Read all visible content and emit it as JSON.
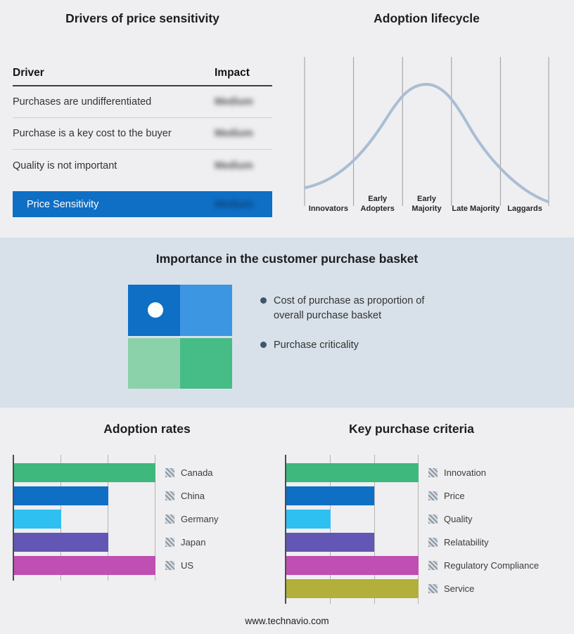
{
  "footer": {
    "text": "www.technavio.com"
  },
  "colors": {
    "page_background": "#efeff1",
    "band_background": "#d8e1ea",
    "accent_blue": "#0e6fc5",
    "curve_stroke": "#aabdd3",
    "bullet_dot": "#3f566b"
  },
  "drivers_panel": {
    "title": "Drivers of price sensitivity",
    "columns": {
      "driver": "Driver",
      "impact": "Impact"
    },
    "impact_values_blurred": true,
    "rows": [
      {
        "driver": "Purchases are undifferentiated",
        "impact": "Medium"
      },
      {
        "driver": "Purchase is a key cost to the buyer",
        "impact": "Medium"
      },
      {
        "driver": "Quality is not important",
        "impact": "Medium"
      }
    ],
    "summary": {
      "label": "Price Sensitivity",
      "impact": "Medium"
    }
  },
  "purchase_basket": {
    "title": "Importance in the customer purchase basket",
    "bullets": [
      "Cost of purchase as proportion of overall purchase basket",
      "Purchase criticality"
    ],
    "quadrant": {
      "top_left": "#0e6fc5",
      "top_right": "#3d96e1",
      "bottom_left": "#8bd1a9",
      "bottom_right": "#46bd86"
    }
  },
  "chart_data": [
    {
      "id": "adoption_lifecycle",
      "type": "line",
      "shape": "bell_curve",
      "title": "Adoption lifecycle",
      "categories": [
        "Innovators",
        "Early Adopters",
        "Early Majority",
        "Late Majority",
        "Laggards"
      ],
      "grid": true,
      "legend_position": "none"
    },
    {
      "id": "adoption_rates",
      "type": "bar",
      "orientation": "horizontal",
      "title": "Adoption rates",
      "xlim": [
        0,
        3
      ],
      "xmax": 3,
      "grid": true,
      "legend_position": "right",
      "series": [
        {
          "label": "Canada",
          "value": 3,
          "color": "#3eb87d"
        },
        {
          "label": "China",
          "value": 2,
          "color": "#0e6fc5"
        },
        {
          "label": "Germany",
          "value": 1,
          "color": "#2fc0f2"
        },
        {
          "label": "Japan",
          "value": 2,
          "color": "#6257b4"
        },
        {
          "label": "US",
          "value": 3,
          "color": "#bf4fb2"
        }
      ]
    },
    {
      "id": "key_purchase_criteria",
      "type": "bar",
      "orientation": "horizontal",
      "title": "Key purchase criteria",
      "xlim": [
        0,
        3
      ],
      "xmax": 3,
      "grid": true,
      "legend_position": "right",
      "series": [
        {
          "label": "Innovation",
          "value": 3,
          "color": "#3eb87d"
        },
        {
          "label": "Price",
          "value": 2,
          "color": "#0e6fc5"
        },
        {
          "label": "Quality",
          "value": 1,
          "color": "#2fc0f2"
        },
        {
          "label": "Relatability",
          "value": 2,
          "color": "#6257b4"
        },
        {
          "label": "Regulatory Compliance",
          "value": 3,
          "color": "#bf4fb2"
        },
        {
          "label": "Service",
          "value": 3,
          "color": "#b2af3a"
        }
      ]
    }
  ]
}
